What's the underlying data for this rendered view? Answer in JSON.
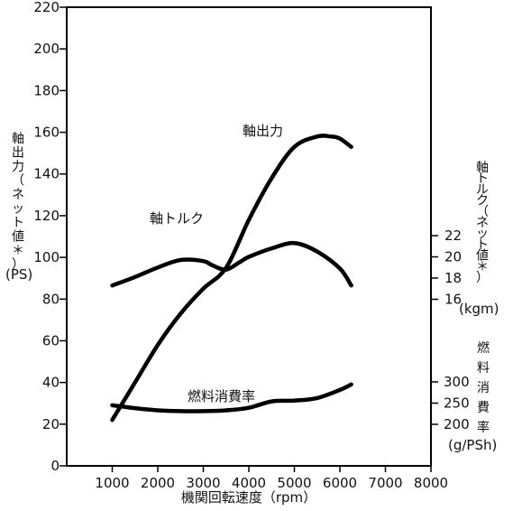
{
  "chart_data": {
    "type": "line",
    "xlabel": "機関回転速度（rpm）",
    "xlim": [
      0,
      8000
    ],
    "x_ticks": [
      1000,
      2000,
      3000,
      4000,
      5000,
      6000,
      7000,
      8000
    ],
    "left_axis": {
      "label_lines": [
        "軸",
        "出",
        "力",
        "（",
        "ネ",
        "ッ",
        "ト",
        "値",
        "＊",
        "）"
      ],
      "unit": "(PS)",
      "ylim": [
        0,
        220
      ],
      "ticks": [
        0,
        20,
        40,
        60,
        80,
        100,
        120,
        140,
        160,
        180,
        200,
        220
      ]
    },
    "right_axes": [
      {
        "label_lines": [
          "軸",
          "ト",
          "ル",
          "ク",
          "（",
          "ネ",
          "ッ",
          "ト",
          "値",
          "＊",
          "）"
        ],
        "unit": "(kgm)",
        "ticks": [
          16,
          18,
          20,
          22
        ]
      },
      {
        "label_lines": [
          "燃",
          "料",
          "消",
          "費",
          "率"
        ],
        "unit": "(g/PSh)",
        "ticks": [
          200,
          250,
          300
        ]
      }
    ],
    "series": [
      {
        "name": "軸出力",
        "axis": "left",
        "x": [
          1000,
          1500,
          2000,
          2500,
          3000,
          3500,
          4000,
          4500,
          5000,
          5500,
          5800,
          6000,
          6250
        ],
        "y": [
          22,
          40,
          58,
          73,
          85,
          95,
          118,
          138,
          153,
          158,
          158,
          157,
          153
        ]
      },
      {
        "name": "軸トルク",
        "axis": "torque",
        "x": [
          1000,
          1500,
          2000,
          2500,
          3000,
          3200,
          3500,
          3800,
          4000,
          4500,
          5000,
          5500,
          6000,
          6250
        ],
        "y": [
          17.3,
          18.1,
          19.0,
          19.7,
          19.6,
          19.2,
          18.8,
          19.5,
          20.0,
          20.8,
          21.3,
          20.5,
          18.9,
          17.3
        ]
      },
      {
        "name": "燃料消費率",
        "axis": "fuel",
        "x": [
          1000,
          1500,
          2000,
          2500,
          3000,
          3500,
          4000,
          4500,
          5000,
          5500,
          6000,
          6250
        ],
        "y": [
          245,
          238,
          233,
          231,
          231,
          233,
          239,
          254,
          256,
          262,
          281,
          294
        ]
      }
    ]
  }
}
